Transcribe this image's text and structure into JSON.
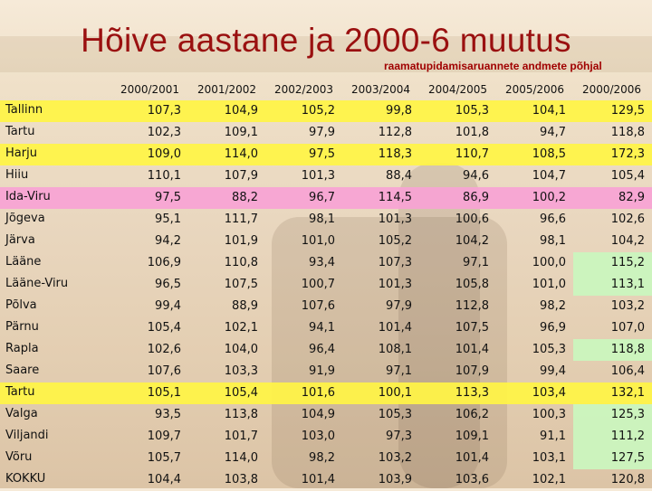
{
  "title": "Hõive aastane ja 2000-6 muutus",
  "subtitle": "raamatupidamisaruannete andmete põhjal",
  "chart_data": {
    "type": "table",
    "columns": [
      "2000/2001",
      "2001/2002",
      "2002/2003",
      "2003/2004",
      "2004/2005",
      "2005/2006",
      "2000/2006"
    ],
    "rows": [
      {
        "name": "Tallinn",
        "highlight": "yellow",
        "values": [
          "107,3",
          "104,9",
          "105,2",
          "99,8",
          "105,3",
          "104,1",
          "129,5"
        ]
      },
      {
        "name": "Tartu",
        "highlight": "none",
        "values": [
          "102,3",
          "109,1",
          "97,9",
          "112,8",
          "101,8",
          "94,7",
          "118,8"
        ]
      },
      {
        "name": "Harju",
        "highlight": "yellow",
        "values": [
          "109,0",
          "114,0",
          "97,5",
          "118,3",
          "110,7",
          "108,5",
          "172,3"
        ]
      },
      {
        "name": "Hiiu",
        "highlight": "none",
        "values": [
          "110,1",
          "107,9",
          "101,3",
          "88,4",
          "94,6",
          "104,7",
          "105,4"
        ]
      },
      {
        "name": "Ida-Viru",
        "highlight": "pink",
        "values": [
          "97,5",
          "88,2",
          "96,7",
          "114,5",
          "86,9",
          "100,2",
          "82,9"
        ]
      },
      {
        "name": "Jõgeva",
        "highlight": "none",
        "values": [
          "95,1",
          "111,7",
          "98,1",
          "101,3",
          "100,6",
          "96,6",
          "102,6"
        ]
      },
      {
        "name": "Järva",
        "highlight": "none",
        "values": [
          "94,2",
          "101,9",
          "101,0",
          "105,2",
          "104,2",
          "98,1",
          "104,2"
        ]
      },
      {
        "name": "Lääne",
        "highlight": "none",
        "values": [
          "106,9",
          "110,8",
          "93,4",
          "107,3",
          "97,1",
          "100,0",
          "115,2"
        ],
        "green_last": true
      },
      {
        "name": "Lääne-Viru",
        "highlight": "none",
        "values": [
          "96,5",
          "107,5",
          "100,7",
          "101,3",
          "105,8",
          "101,0",
          "113,1"
        ],
        "green_last": true
      },
      {
        "name": "Põlva",
        "highlight": "none",
        "values": [
          "99,4",
          "88,9",
          "107,6",
          "97,9",
          "112,8",
          "98,2",
          "103,2"
        ]
      },
      {
        "name": "Pärnu",
        "highlight": "none",
        "values": [
          "105,4",
          "102,1",
          "94,1",
          "101,4",
          "107,5",
          "96,9",
          "107,0"
        ]
      },
      {
        "name": "Rapla",
        "highlight": "none",
        "values": [
          "102,6",
          "104,0",
          "96,4",
          "108,1",
          "101,4",
          "105,3",
          "118,8"
        ],
        "green_last": true
      },
      {
        "name": "Saare",
        "highlight": "none",
        "values": [
          "107,6",
          "103,3",
          "91,9",
          "97,1",
          "107,9",
          "99,4",
          "106,4"
        ]
      },
      {
        "name": "Tartu",
        "highlight": "yellow",
        "values": [
          "105,1",
          "105,4",
          "101,6",
          "100,1",
          "113,3",
          "103,4",
          "132,1"
        ]
      },
      {
        "name": "Valga",
        "highlight": "none",
        "values": [
          "93,5",
          "113,8",
          "104,9",
          "105,3",
          "106,2",
          "100,3",
          "125,3"
        ],
        "green_last": true
      },
      {
        "name": "Viljandi",
        "highlight": "none",
        "values": [
          "109,7",
          "101,7",
          "103,0",
          "97,3",
          "109,1",
          "91,1",
          "111,2"
        ],
        "green_last": true
      },
      {
        "name": "Võru",
        "highlight": "none",
        "values": [
          "105,7",
          "114,0",
          "98,2",
          "103,2",
          "101,4",
          "103,1",
          "127,5"
        ],
        "green_last": true
      },
      {
        "name": "KOKKU",
        "highlight": "none",
        "values": [
          "104,4",
          "103,8",
          "101,4",
          "103,9",
          "103,6",
          "102,1",
          "120,8"
        ]
      }
    ]
  }
}
